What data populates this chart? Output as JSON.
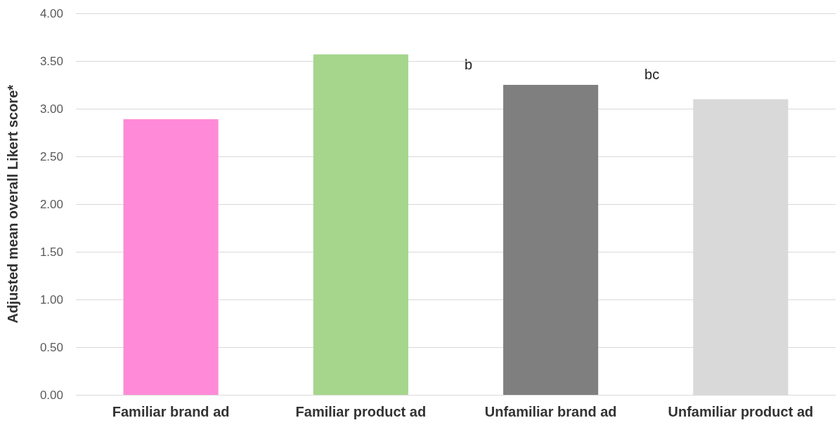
{
  "chart_data": {
    "type": "bar",
    "ylabel": "Adjusted mean overall Likert score*",
    "categories": [
      "Familiar brand ad",
      "Familiar product ad",
      "Unfamiliar brand ad",
      "Unfamiliar product ad"
    ],
    "values": [
      2.89,
      3.57,
      3.25,
      3.1
    ],
    "colors": [
      "#ff8ad8",
      "#a5d68b",
      "#7f7f7f",
      "#d9d9d9"
    ],
    "ylim": [
      0,
      4
    ],
    "yticks": [
      {
        "value": 0,
        "label": "0.00"
      },
      {
        "value": 0.5,
        "label": "0.50"
      },
      {
        "value": 1,
        "label": "1.00"
      },
      {
        "value": 1.5,
        "label": "1.50"
      },
      {
        "value": 2,
        "label": "2.00"
      },
      {
        "value": 2.5,
        "label": "2.50"
      },
      {
        "value": 3,
        "label": "3.00"
      },
      {
        "value": 3.5,
        "label": "3.50"
      },
      {
        "value": 4,
        "label": "4.00"
      }
    ],
    "grid": "y",
    "annotations": [
      "b",
      "bc"
    ]
  }
}
